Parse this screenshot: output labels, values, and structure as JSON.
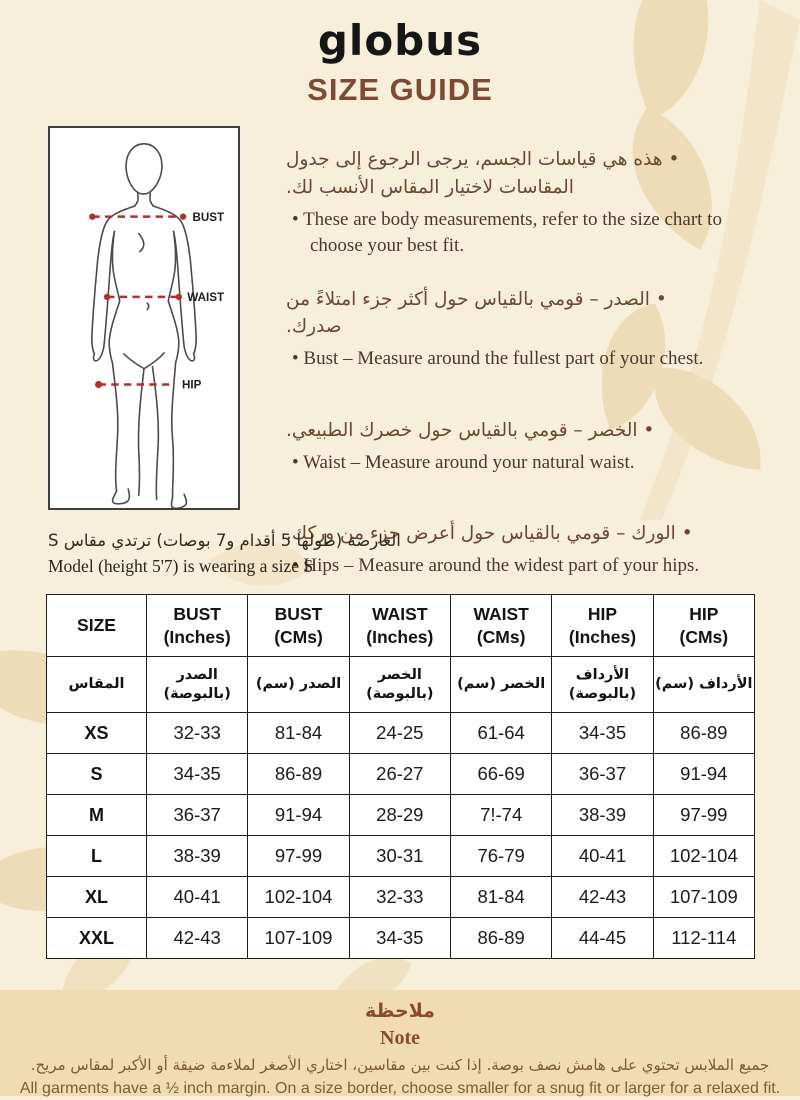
{
  "glyphs": {
    "bullet": "•"
  },
  "colors": {
    "page_bg": "#f8efdb",
    "band_bg": "#f1dcb2",
    "heading_brown": "#7c4b34",
    "measure_red": "#b13129",
    "leaf_tan": "#eedcb9"
  },
  "header": {
    "logo": "globus",
    "title": "SIZE GUIDE"
  },
  "figure": {
    "labels": {
      "bust": "BUST",
      "waist": "WAIST",
      "hip": "HIP"
    }
  },
  "bullets": [
    {
      "ar": "هذه هي قياسات الجسم، يرجى الرجوع إلى جدول المقاسات لاختيار المقاس الأنسب لك.",
      "en": "These are body measurements, refer to the size chart to choose your best fit."
    },
    {
      "ar": "الصدر – قومي بالقياس حول أكثر جزء امتلاءً من صدرك.",
      "en": "Bust – Measure around the fullest part of your chest."
    },
    {
      "ar": "الخصر – قومي بالقياس حول خصرك الطبيعي.",
      "en": "Waist – Measure around your natural waist."
    },
    {
      "ar": "الورك – قومي بالقياس حول أعرض جزء من وركك.",
      "en": "Hips – Measure around the widest part of your hips."
    }
  ],
  "model_note": {
    "ar": "العارضة (طولها 5 أقدام و7 بوصات) ترتدي مقاس S",
    "en": "Model (height 5'7) is wearing a size S"
  },
  "table": {
    "columns": [
      {
        "key": "size",
        "en": [
          "SIZE"
        ],
        "ar": [
          "المقاس"
        ]
      },
      {
        "key": "bust-in",
        "en": [
          "BUST",
          "(Inches)"
        ],
        "ar": [
          "الصدر",
          "(بالبوصة)"
        ]
      },
      {
        "key": "bust-cm",
        "en": [
          "BUST",
          "(CMs)"
        ],
        "ar": [
          "الصدر (سم)"
        ]
      },
      {
        "key": "waist-in",
        "en": [
          "WAIST",
          "(Inches)"
        ],
        "ar": [
          "الخصر",
          "(بالبوصة)"
        ]
      },
      {
        "key": "waist-cm",
        "en": [
          "WAIST",
          "(CMs)"
        ],
        "ar": [
          "الخصر (سم)"
        ]
      },
      {
        "key": "hip-in",
        "en": [
          "HIP",
          "(Inches)"
        ],
        "ar": [
          "الأرداف",
          "(بالبوصة)"
        ]
      },
      {
        "key": "hip-cm",
        "en": [
          "HIP",
          "(CMs)"
        ],
        "ar": [
          "الأرداف (سم)"
        ]
      }
    ],
    "rows": [
      {
        "size": "XS",
        "values": [
          "32-33",
          "81-84",
          "24-25",
          "61-64",
          "34-35",
          "86-89"
        ]
      },
      {
        "size": "S",
        "values": [
          "34-35",
          "86-89",
          "26-27",
          "66-69",
          "36-37",
          "91-94"
        ]
      },
      {
        "size": "M",
        "values": [
          "36-37",
          "91-94",
          "28-29",
          "7!-74",
          "38-39",
          "97-99"
        ]
      },
      {
        "size": "L",
        "values": [
          "38-39",
          "97-99",
          "30-31",
          "76-79",
          "40-41",
          "102-104"
        ]
      },
      {
        "size": "XL",
        "values": [
          "40-41",
          "102-104",
          "32-33",
          "81-84",
          "42-43",
          "107-109"
        ]
      },
      {
        "size": "XXL",
        "values": [
          "42-43",
          "107-109",
          "34-35",
          "86-89",
          "44-45",
          "112-114"
        ]
      }
    ]
  },
  "note": {
    "title_ar": "ملاحظة",
    "title_en": "Note",
    "body_ar": "جميع الملابس تحتوي على هامش نصف بوصة. إذا كنت بين مقاسين، اختاري الأصغر لملاءمة ضيقة أو الأكبر لمقاس مريح.",
    "body_en": "All garments have a ½ inch margin. On a size border, choose smaller for a snug fit or larger for a relaxed fit."
  }
}
